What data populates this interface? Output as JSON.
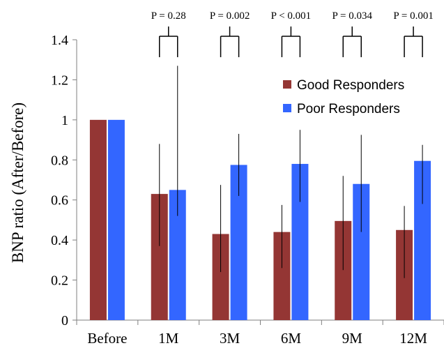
{
  "chart_data": {
    "type": "bar",
    "title": "",
    "xlabel": "",
    "ylabel": "BNP ratio (After/Before)",
    "ylim": [
      0,
      1.4
    ],
    "yticks": [
      "0",
      "0.2",
      "0.4",
      "0.6",
      "0.8",
      "1",
      "1.2",
      "1.4"
    ],
    "categories": [
      "Before",
      "1M",
      "3M",
      "6M",
      "9M",
      "12M"
    ],
    "series": [
      {
        "name": "Good Responders",
        "color": "#943634",
        "values": [
          1.0,
          0.63,
          0.43,
          0.44,
          0.495,
          0.45
        ],
        "error_low": [
          null,
          0.37,
          0.24,
          0.26,
          0.25,
          0.21
        ],
        "error_high": [
          null,
          0.88,
          0.675,
          0.575,
          0.72,
          0.57
        ]
      },
      {
        "name": "Poor Responders",
        "color": "#3366ff",
        "values": [
          1.0,
          0.65,
          0.775,
          0.78,
          0.68,
          0.795
        ],
        "error_low": [
          null,
          0.52,
          0.62,
          0.59,
          0.44,
          0.58
        ],
        "error_high": [
          null,
          1.27,
          0.93,
          0.95,
          0.925,
          0.875
        ]
      }
    ],
    "p_values": [
      {
        "category": "1M",
        "label": "P = 0.28"
      },
      {
        "category": "3M",
        "label": "P = 0.002"
      },
      {
        "category": "6M",
        "label": "P < 0.001"
      },
      {
        "category": "9M",
        "label": "P = 0.034"
      },
      {
        "category": "12M",
        "label": "P = 0.001"
      }
    ],
    "legend_position": "top-right",
    "grid": false
  }
}
